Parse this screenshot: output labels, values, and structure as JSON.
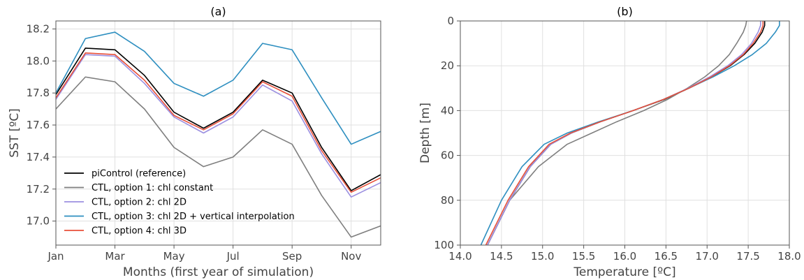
{
  "chart_data": [
    {
      "type": "line",
      "title": "(a)",
      "xlabel": "Months (first year of simulation)",
      "ylabel": "SST [ºC]",
      "x": [
        0,
        1,
        2,
        3,
        4,
        5,
        6,
        7,
        8,
        9,
        10,
        11
      ],
      "xticks": [
        0,
        2,
        4,
        6,
        8,
        10
      ],
      "xtick_labels": [
        "Jan",
        "Mar",
        "May",
        "Jul",
        "Sep",
        "Nov"
      ],
      "xlim": [
        0,
        11
      ],
      "ylim": [
        16.85,
        18.25
      ],
      "yticks": [
        17.0,
        17.2,
        17.4,
        17.6,
        17.8,
        18.0,
        18.2
      ],
      "ytick_labels": [
        "17.0",
        "17.2",
        "17.4",
        "17.6",
        "17.8",
        "18.0",
        "18.2"
      ],
      "grid": true,
      "legend_position": "lower-left",
      "series": [
        {
          "name": "piControl (reference)",
          "color": "#000000",
          "values": [
            17.79,
            18.08,
            18.07,
            17.91,
            17.68,
            17.58,
            17.68,
            17.88,
            17.8,
            17.46,
            17.19,
            17.29
          ]
        },
        {
          "name": "CTL, option 1: chl constant",
          "color": "#7f7f7f",
          "values": [
            17.7,
            17.9,
            17.87,
            17.7,
            17.46,
            17.34,
            17.4,
            17.57,
            17.48,
            17.16,
            16.9,
            16.97
          ]
        },
        {
          "name": "CTL, option 2: chl 2D",
          "color": "#9b8fe0",
          "values": [
            17.76,
            18.04,
            18.03,
            17.86,
            17.65,
            17.55,
            17.65,
            17.85,
            17.75,
            17.42,
            17.15,
            17.24
          ]
        },
        {
          "name": "CTL, option 3: chl 2D + vertical interpolation",
          "color": "#2e8fc0",
          "values": [
            17.8,
            18.14,
            18.18,
            18.06,
            17.86,
            17.78,
            17.88,
            18.11,
            18.07,
            17.77,
            17.48,
            17.56
          ]
        },
        {
          "name": "CTL, option 4: chl 3D",
          "color": "#e8503a",
          "values": [
            17.77,
            18.05,
            18.04,
            17.88,
            17.66,
            17.57,
            17.67,
            17.87,
            17.78,
            17.44,
            17.18,
            17.27
          ]
        }
      ]
    },
    {
      "type": "line",
      "title": "(b)",
      "xlabel": "Temperature [ºC]",
      "ylabel": "Depth [m]",
      "xlim": [
        14.0,
        18.0
      ],
      "xticks": [
        14.0,
        14.5,
        15.0,
        15.5,
        16.0,
        16.5,
        17.0,
        17.5,
        18.0
      ],
      "xtick_labels": [
        "14.0",
        "14.5",
        "15.0",
        "15.5",
        "16.0",
        "16.5",
        "17.0",
        "17.5",
        "18.0"
      ],
      "ylim": [
        0,
        100
      ],
      "y_inverted": true,
      "yticks": [
        0,
        20,
        40,
        60,
        80,
        100
      ],
      "ytick_labels": [
        "0",
        "20",
        "40",
        "60",
        "80",
        "100"
      ],
      "grid": true,
      "series": [
        {
          "name": "piControl (reference)",
          "color": "#000000",
          "x": [
            17.7,
            17.7,
            17.67,
            17.58,
            17.45,
            17.28,
            17.05,
            16.78,
            16.48,
            16.1,
            15.7,
            15.35,
            15.1,
            14.85,
            14.6,
            14.33
          ],
          "y": [
            0,
            2,
            5,
            10,
            15,
            20,
            25,
            30,
            35,
            40,
            45,
            50,
            55,
            65,
            80,
            100
          ]
        },
        {
          "name": "CTL, option 1: chl constant",
          "color": "#7f7f7f",
          "x": [
            17.48,
            17.47,
            17.44,
            17.36,
            17.27,
            17.14,
            16.97,
            16.76,
            16.52,
            16.23,
            15.9,
            15.6,
            15.3,
            14.95,
            14.6,
            14.33
          ],
          "y": [
            0,
            2,
            5,
            10,
            15,
            20,
            25,
            30,
            35,
            40,
            45,
            50,
            55,
            65,
            80,
            100
          ]
        },
        {
          "name": "CTL, option 2: chl 2D",
          "color": "#9b8fe0",
          "x": [
            17.65,
            17.65,
            17.62,
            17.54,
            17.42,
            17.25,
            17.03,
            16.77,
            16.47,
            16.1,
            15.7,
            15.35,
            15.1,
            14.85,
            14.6,
            14.33
          ],
          "y": [
            0,
            2,
            5,
            10,
            15,
            20,
            25,
            30,
            35,
            40,
            45,
            50,
            55,
            65,
            80,
            100
          ]
        },
        {
          "name": "CTL, option 3: chl 2D + vertical interpolation",
          "color": "#2e8fc0",
          "x": [
            17.88,
            17.88,
            17.83,
            17.72,
            17.55,
            17.33,
            17.07,
            16.78,
            16.47,
            16.1,
            15.68,
            15.3,
            15.02,
            14.75,
            14.5,
            14.25
          ],
          "y": [
            0,
            2,
            5,
            10,
            15,
            20,
            25,
            30,
            35,
            40,
            45,
            50,
            55,
            65,
            80,
            100
          ]
        },
        {
          "name": "CTL, option 4: chl 3D",
          "color": "#e8503a",
          "x": [
            17.68,
            17.68,
            17.65,
            17.56,
            17.44,
            17.27,
            17.05,
            16.78,
            16.47,
            16.1,
            15.7,
            15.34,
            15.08,
            14.83,
            14.58,
            14.31
          ],
          "y": [
            0,
            2,
            5,
            10,
            15,
            20,
            25,
            30,
            35,
            40,
            45,
            50,
            55,
            65,
            80,
            100
          ]
        }
      ]
    }
  ]
}
